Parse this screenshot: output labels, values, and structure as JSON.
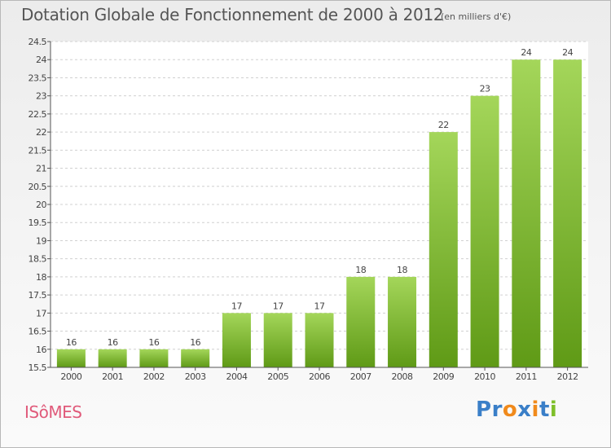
{
  "title": "Dotation Globale de Fonctionnement de 2000 à 2012",
  "unit": "(en milliers d'€)",
  "place": "ISôMES",
  "brand": {
    "letters": [
      "P",
      "r",
      "o",
      "x",
      "i",
      "t",
      "i"
    ],
    "colors": [
      "#3a7fc8",
      "#3a7fc8",
      "#f08a1c",
      "#3a7fc8",
      "#f08a1c",
      "#3a7fc8",
      "#7fbf2a"
    ]
  },
  "colors": {
    "bar_top": "#a4d65a",
    "bar_bottom": "#5f9a16",
    "axis": "#555555",
    "grid": "#d0d0d0",
    "place": "#e05a7a"
  },
  "chart_data": {
    "type": "bar",
    "categories": [
      "2000",
      "2001",
      "2002",
      "2003",
      "2004",
      "2005",
      "2006",
      "2007",
      "2008",
      "2009",
      "2010",
      "2011",
      "2012"
    ],
    "values": [
      16,
      16,
      16,
      16,
      17,
      17,
      17,
      18,
      18,
      22,
      23,
      24,
      24
    ],
    "data_labels": [
      "16",
      "16",
      "16",
      "16",
      "17",
      "17",
      "17",
      "18",
      "18",
      "22",
      "23",
      "24",
      "24"
    ],
    "yticks": [
      "15.5",
      "16",
      "16.5",
      "17",
      "17.5",
      "18",
      "18.5",
      "19",
      "19.5",
      "20",
      "20.5",
      "21",
      "21.5",
      "22",
      "22.5",
      "23",
      "23.5",
      "24",
      "24.5"
    ],
    "ylim": [
      15.5,
      24.5
    ],
    "xlabel": "",
    "ylabel": "",
    "grid": true
  }
}
